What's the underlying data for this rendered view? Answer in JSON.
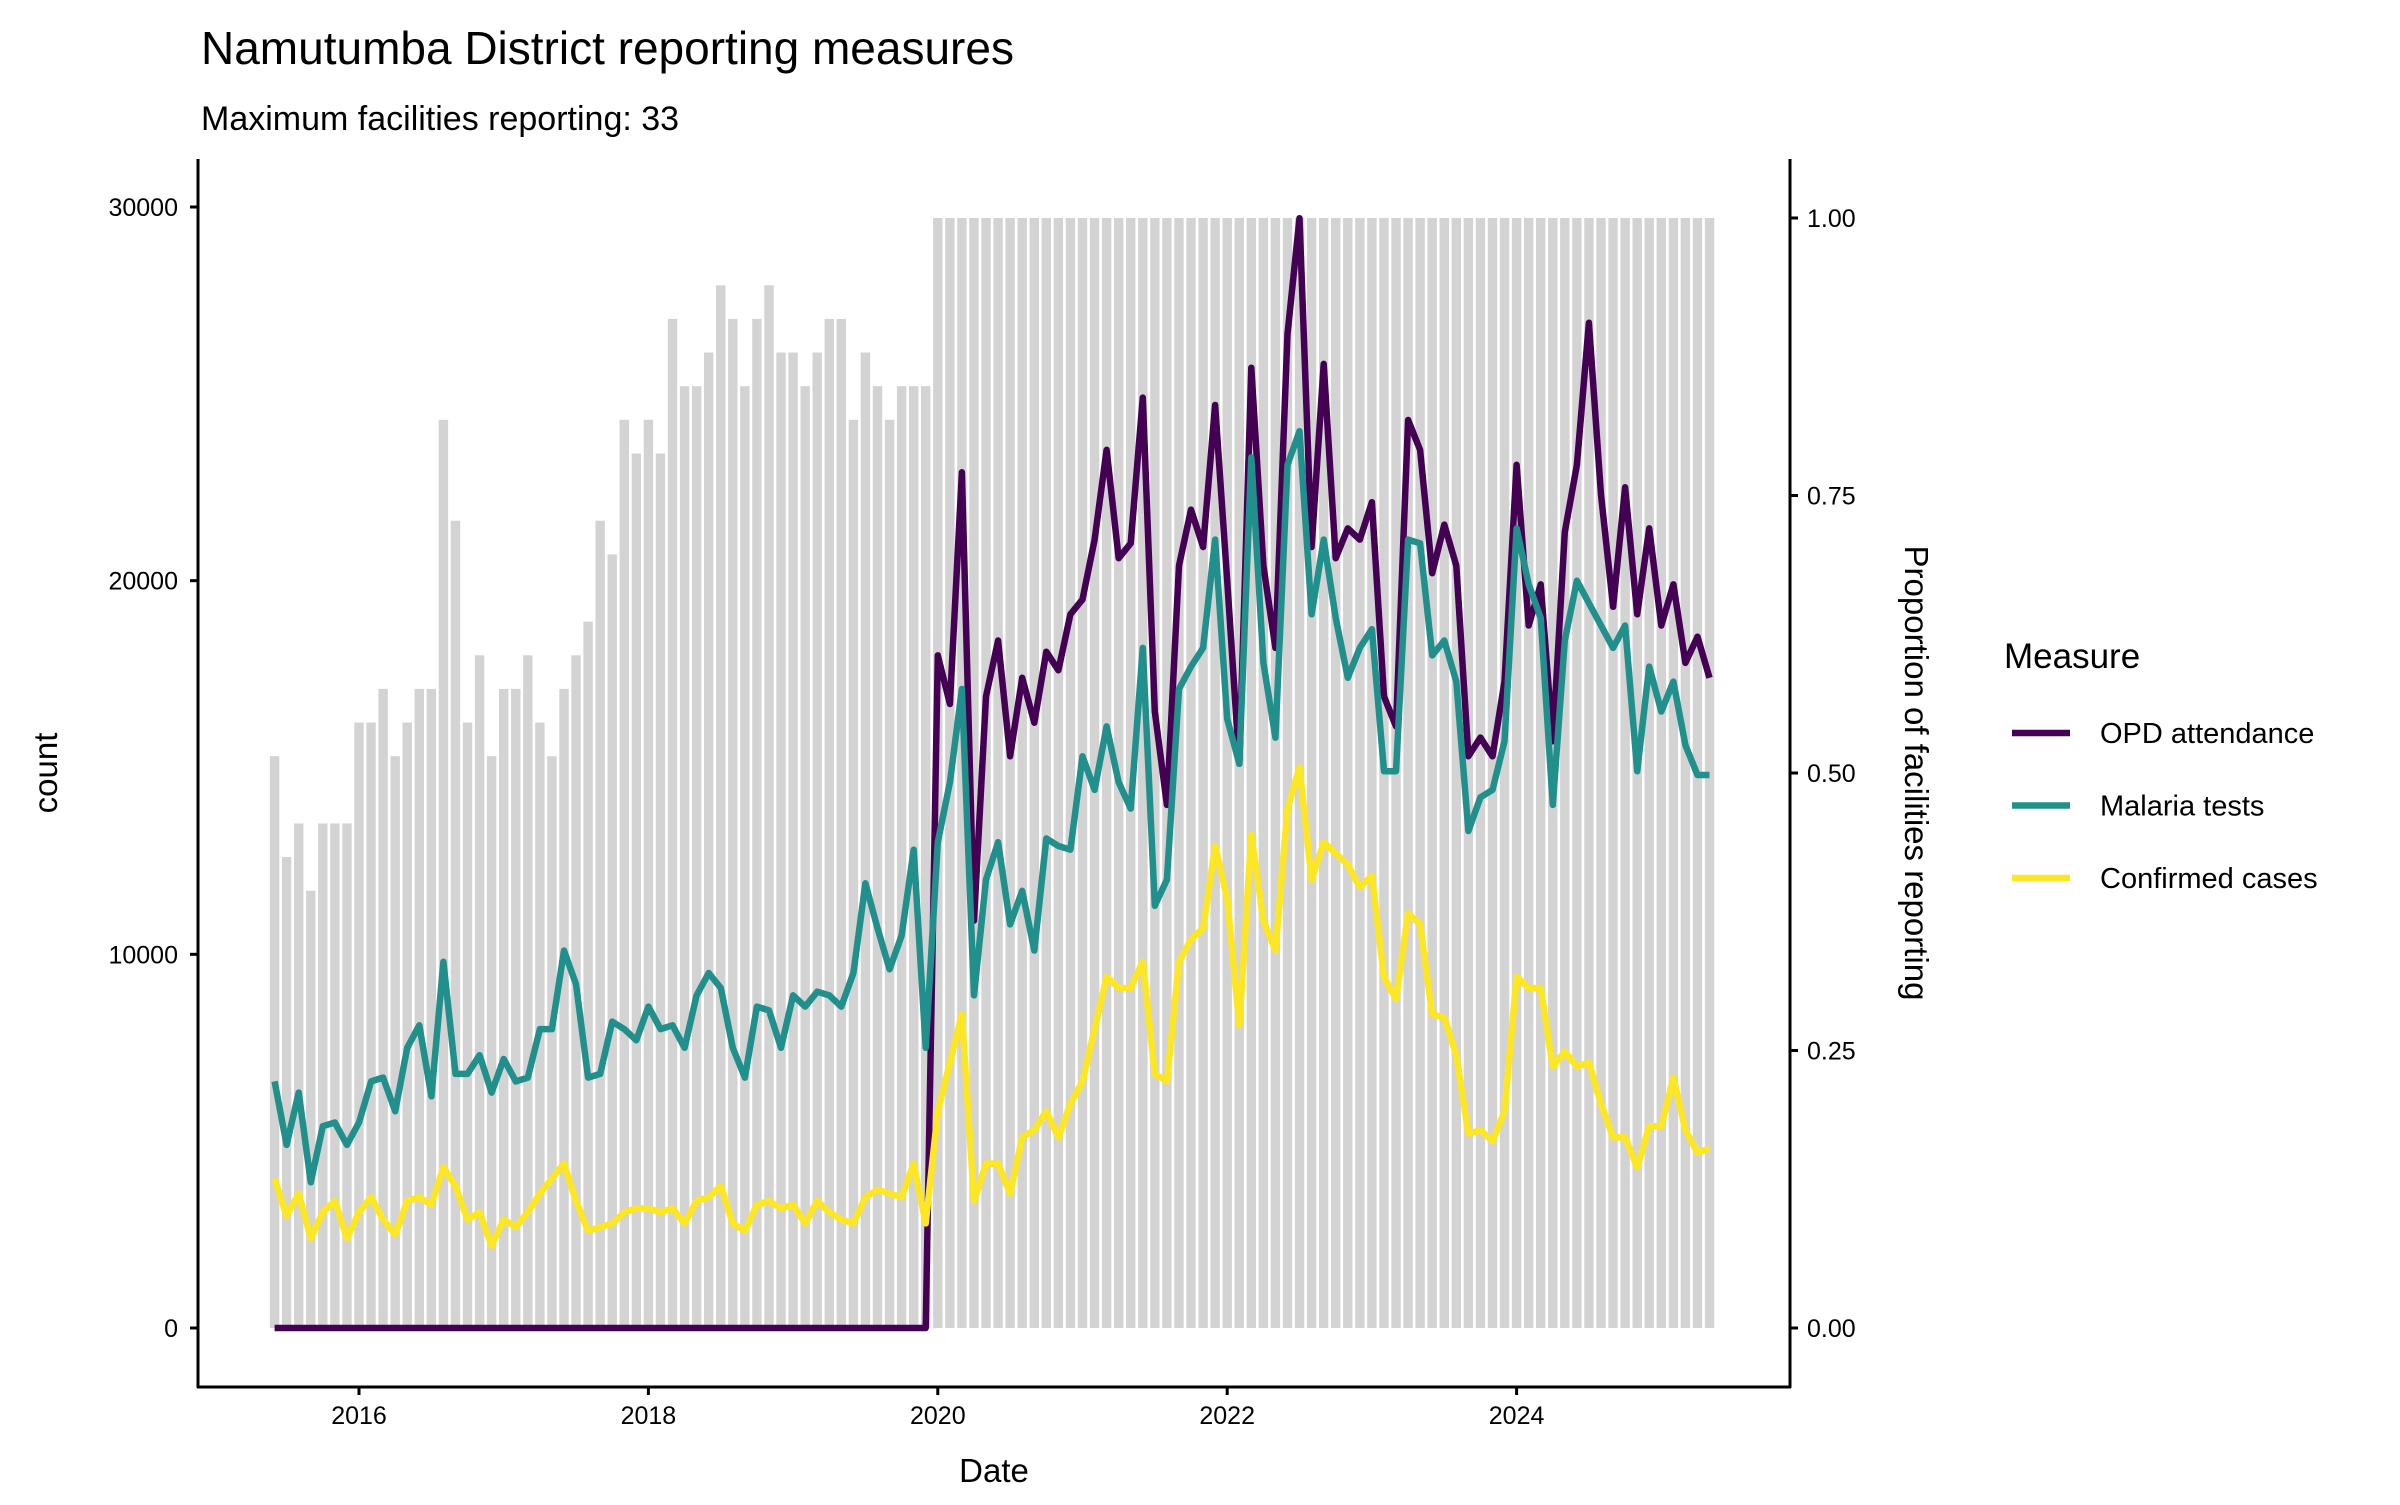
{
  "chart_data": {
    "type": "bar+line",
    "title": "Namutumba District reporting measures",
    "subtitle": "Maximum facilities reporting: 33",
    "xlabel": "Date",
    "ylabel": "count",
    "y2label": "Proportion of facilities reporting",
    "x_start": "2015-06",
    "x_frequency": "monthly",
    "x_ticks": [
      "2016",
      "2018",
      "2020",
      "2022",
      "2024"
    ],
    "y_ticks": [
      "0",
      "10000",
      "20000",
      "30000"
    ],
    "y2_ticks": [
      "0.00",
      "0.25",
      "0.50",
      "0.75",
      "1.00"
    ],
    "ylim": [
      -1500,
      31200
    ],
    "y2lim": [
      0,
      1
    ],
    "max_facilities": 33,
    "legend_title": "Measure",
    "legend_position": "right",
    "bars": {
      "name": "Facilities reporting",
      "color": "#D3D3D3",
      "values": [
        17,
        14,
        15,
        13,
        15,
        15,
        15,
        18,
        18,
        19,
        17,
        18,
        19,
        19,
        27,
        24,
        18,
        20,
        17,
        19,
        19,
        20,
        18,
        17,
        19,
        20,
        21,
        24,
        23,
        27,
        26,
        27,
        26,
        30,
        28,
        28,
        29,
        31,
        30,
        28,
        30,
        31,
        29,
        29,
        28,
        29,
        30,
        30,
        27,
        29,
        28,
        27,
        28,
        28,
        28,
        33,
        33,
        33,
        33,
        33,
        33,
        33,
        33,
        33,
        33,
        33,
        33,
        33,
        33,
        33,
        33,
        33,
        33,
        33,
        33,
        33,
        33,
        33,
        33,
        33,
        33,
        33,
        33,
        33,
        33,
        33,
        33,
        33,
        33,
        33,
        33,
        33,
        33,
        33,
        33,
        33,
        33,
        33,
        33,
        33,
        33,
        33,
        33,
        33,
        33,
        33,
        33,
        33,
        33,
        33,
        33,
        33,
        33,
        33,
        33,
        33,
        33,
        33,
        33,
        33
      ]
    },
    "series": [
      {
        "name": "OPD attendance",
        "color": "#440154",
        "values": [
          0,
          0,
          0,
          0,
          0,
          0,
          0,
          0,
          0,
          0,
          0,
          0,
          0,
          0,
          0,
          0,
          0,
          0,
          0,
          0,
          0,
          0,
          0,
          0,
          0,
          0,
          0,
          0,
          0,
          0,
          0,
          0,
          0,
          0,
          0,
          0,
          0,
          0,
          0,
          0,
          0,
          0,
          0,
          0,
          0,
          0,
          0,
          0,
          0,
          0,
          0,
          0,
          0,
          0,
          0,
          18000,
          16700,
          22900,
          10900,
          16900,
          18400,
          15300,
          17400,
          16200,
          18100,
          17600,
          19100,
          19500,
          21100,
          23500,
          20600,
          21000,
          24900,
          16500,
          14000,
          20400,
          21900,
          20900,
          24700,
          20000,
          15100,
          25700,
          20400,
          18200,
          26600,
          29700,
          20900,
          25800,
          20600,
          21400,
          21100,
          22100,
          16900,
          16100,
          24300,
          23500,
          20200,
          21500,
          20400,
          15300,
          15800,
          15300,
          17300,
          23100,
          18800,
          19900,
          15700,
          21300,
          23100,
          26900,
          22300,
          19300,
          22500,
          19100,
          21400,
          18800,
          19900,
          17800,
          18500,
          17400
        ]
      },
      {
        "name": "Malaria tests",
        "color": "#21908C",
        "values": [
          6600,
          4900,
          6300,
          3900,
          5400,
          5500,
          4900,
          5500,
          6600,
          6700,
          5800,
          7500,
          8100,
          6200,
          9800,
          6800,
          6800,
          7300,
          6300,
          7200,
          6600,
          6700,
          8000,
          8000,
          10100,
          9200,
          6700,
          6800,
          8200,
          8000,
          7700,
          8600,
          8000,
          8100,
          7500,
          8900,
          9500,
          9100,
          7500,
          6700,
          8600,
          8500,
          7500,
          8900,
          8600,
          9000,
          8900,
          8600,
          9500,
          11900,
          10700,
          9600,
          10500,
          12800,
          7500,
          13000,
          14600,
          17100,
          8900,
          12000,
          13000,
          10800,
          11700,
          10100,
          13100,
          12900,
          12800,
          15300,
          14400,
          16100,
          14600,
          13900,
          18200,
          11300,
          12000,
          17100,
          17700,
          18200,
          21100,
          16300,
          15100,
          23300,
          17800,
          15800,
          23100,
          24000,
          19100,
          21100,
          19000,
          17400,
          18200,
          18700,
          14900,
          14900,
          21100,
          21000,
          18000,
          18400,
          17300,
          13300,
          14200,
          14400,
          15700,
          21400,
          19900,
          19000,
          14000,
          18400,
          20000,
          19400,
          18800,
          18200,
          18800,
          14900,
          17700,
          16500,
          17300,
          15600,
          14800,
          14800
        ]
      },
      {
        "name": "Confirmed cases",
        "color": "#FDE725",
        "values": [
          4000,
          3000,
          3600,
          2400,
          3100,
          3400,
          2400,
          3100,
          3500,
          2900,
          2500,
          3400,
          3500,
          3300,
          4300,
          3800,
          2900,
          3100,
          2200,
          2900,
          2700,
          3100,
          3600,
          4000,
          4400,
          3400,
          2600,
          2700,
          2800,
          3100,
          3200,
          3200,
          3100,
          3200,
          2800,
          3400,
          3500,
          3800,
          2800,
          2600,
          3300,
          3400,
          3200,
          3300,
          2800,
          3400,
          3100,
          2900,
          2800,
          3500,
          3700,
          3600,
          3500,
          4400,
          2800,
          5800,
          7100,
          8400,
          3400,
          4400,
          4400,
          3600,
          5100,
          5300,
          5800,
          5100,
          6000,
          6600,
          8000,
          9400,
          9100,
          9100,
          9800,
          6800,
          6600,
          9800,
          10400,
          10700,
          12900,
          11500,
          8100,
          13200,
          10900,
          10100,
          13900,
          15000,
          12000,
          13000,
          12700,
          12400,
          11800,
          12100,
          9400,
          8800,
          11100,
          10800,
          8400,
          8300,
          7300,
          5200,
          5300,
          5000,
          5800,
          9400,
          9100,
          9100,
          7000,
          7400,
          7000,
          7100,
          6000,
          5100,
          5100,
          4300,
          5400,
          5400,
          6700,
          5300,
          4700,
          4800
        ]
      }
    ]
  }
}
